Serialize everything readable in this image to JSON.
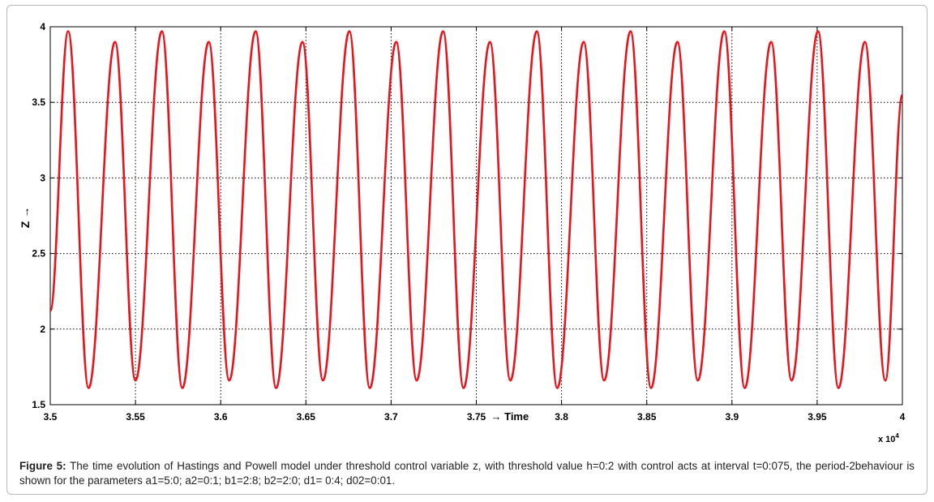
{
  "figure": {
    "caption_label": "Figure 5:",
    "caption_text": "The time evolution of Hastings and Powell model under threshold control variable z, with threshold value h=0:2 with control acts at interval t=0:075, the period-2behaviour is shown for the parameters a1=5:0; a2=0:1; b1=2:8; b2=2:0; d1= 0:4; d02=0:01."
  },
  "chart_data": {
    "type": "line",
    "title": "",
    "xlabel": "→ Time",
    "ylabel": "Z →",
    "x_multiplier_label": "x 10",
    "x_multiplier_exponent": "4",
    "xlim": [
      3.5,
      4.0
    ],
    "ylim": [
      1.5,
      4.0
    ],
    "grid": true,
    "grid_style": "dotted",
    "x_ticks": [
      3.5,
      3.55,
      3.6,
      3.65,
      3.7,
      3.75,
      3.8,
      3.85,
      3.9,
      3.95,
      4.0
    ],
    "x_tick_labels": [
      "3.5",
      "3.55",
      "3.6",
      "3.65",
      "3.7",
      "3.75",
      "3.8",
      "3.85",
      "3.9",
      "3.95",
      "4"
    ],
    "y_ticks": [
      1.5,
      2.0,
      2.5,
      3.0,
      3.5,
      4.0
    ],
    "y_tick_labels": [
      "1.5",
      "2",
      "2.5",
      "3",
      "3.5",
      "4"
    ],
    "series": [
      {
        "color": "#e8141c",
        "start": [
          3.5,
          2.12
        ],
        "end": [
          4.0,
          3.55
        ],
        "peaks": [
          [
            3.5105,
            3.97
          ],
          [
            3.538,
            3.9
          ],
          [
            3.5655,
            3.97
          ],
          [
            3.593,
            3.9
          ],
          [
            3.6205,
            3.97
          ],
          [
            3.648,
            3.9
          ],
          [
            3.6755,
            3.97
          ],
          [
            3.703,
            3.9
          ],
          [
            3.7305,
            3.97
          ],
          [
            3.758,
            3.9
          ],
          [
            3.7855,
            3.97
          ],
          [
            3.813,
            3.9
          ],
          [
            3.8405,
            3.97
          ],
          [
            3.868,
            3.9
          ],
          [
            3.8955,
            3.97
          ],
          [
            3.923,
            3.9
          ],
          [
            3.9505,
            3.97
          ],
          [
            3.978,
            3.9
          ]
        ],
        "troughs": [
          [
            3.5225,
            1.61
          ],
          [
            3.55,
            1.66
          ],
          [
            3.5775,
            1.61
          ],
          [
            3.605,
            1.66
          ],
          [
            3.6325,
            1.61
          ],
          [
            3.66,
            1.66
          ],
          [
            3.6875,
            1.61
          ],
          [
            3.715,
            1.66
          ],
          [
            3.7425,
            1.61
          ],
          [
            3.77,
            1.66
          ],
          [
            3.7975,
            1.61
          ],
          [
            3.825,
            1.66
          ],
          [
            3.8525,
            1.61
          ],
          [
            3.88,
            1.66
          ],
          [
            3.9075,
            1.61
          ],
          [
            3.935,
            1.66
          ],
          [
            3.9625,
            1.61
          ],
          [
            3.99,
            1.66
          ]
        ]
      }
    ]
  }
}
